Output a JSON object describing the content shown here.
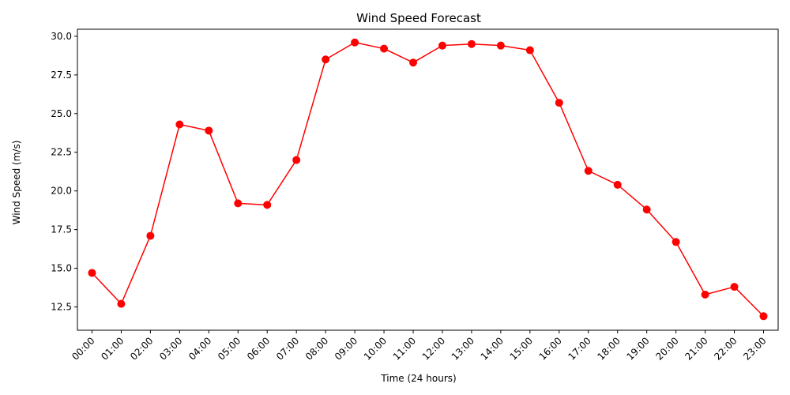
{
  "chart_data": {
    "type": "line",
    "title": "Wind Speed Forecast",
    "xlabel": "Time (24 hours)",
    "ylabel": "Wind Speed (m/s)",
    "categories": [
      "00:00",
      "01:00",
      "02:00",
      "03:00",
      "04:00",
      "05:00",
      "06:00",
      "07:00",
      "08:00",
      "09:00",
      "10:00",
      "11:00",
      "12:00",
      "13:00",
      "14:00",
      "15:00",
      "16:00",
      "17:00",
      "18:00",
      "19:00",
      "20:00",
      "21:00",
      "22:00",
      "23:00"
    ],
    "series": [
      {
        "values": [
          14.7,
          12.7,
          17.1,
          24.3,
          23.9,
          19.2,
          19.1,
          22.0,
          28.5,
          29.6,
          29.2,
          28.3,
          29.4,
          29.5,
          29.4,
          29.1,
          25.7,
          21.3,
          20.4,
          18.8,
          16.7,
          13.3,
          13.8,
          11.9
        ],
        "color": "#ff0000",
        "marker": "circle"
      }
    ],
    "ylim": [
      10.995,
      30.455
    ],
    "yticks": [
      12.5,
      15.0,
      17.5,
      20.0,
      22.5,
      25.0,
      27.5,
      30.0
    ],
    "yticklabels": [
      "12.5",
      "15.0",
      "17.5",
      "20.0",
      "22.5",
      "25.0",
      "27.5",
      "30.0"
    ],
    "grid": false,
    "legend": "none"
  }
}
